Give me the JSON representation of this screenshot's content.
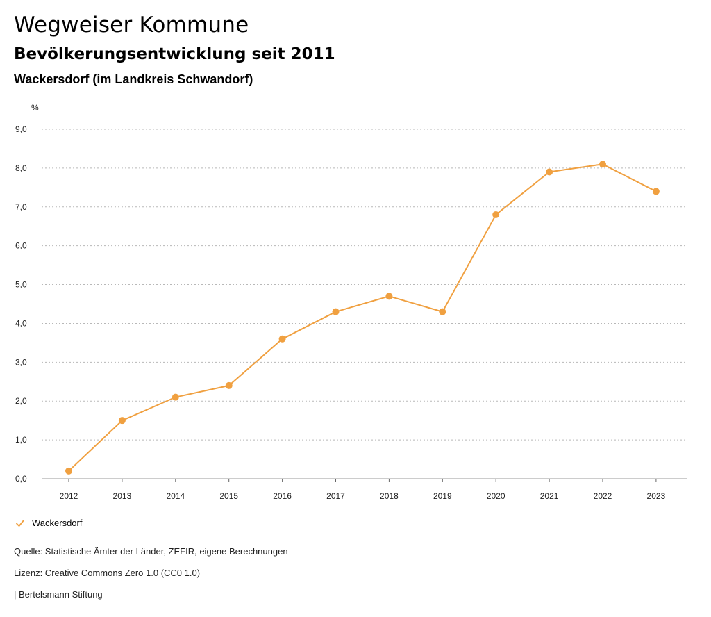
{
  "header": {
    "title": "Wegweiser Kommune",
    "subtitle": "Bevölkerungsentwicklung seit 2011",
    "region": "Wackersdorf (im Landkreis Schwandorf)"
  },
  "legend": {
    "label": "Wackersdorf",
    "icon": "checkmark-icon"
  },
  "footer": {
    "source": "Quelle: Statistische Ämter der Länder, ZEFIR, eigene Berechnungen",
    "license": "Lizenz: Creative Commons Zero 1.0 (CC0 1.0)",
    "brand": "| Bertelsmann Stiftung"
  },
  "colors": {
    "series": "#f0a040",
    "grid": "#b8b8b8"
  },
  "chart_data": {
    "type": "line",
    "title": "Bevölkerungsentwicklung seit 2011",
    "xlabel": "",
    "ylabel": "%",
    "ylim": [
      0,
      9
    ],
    "yticks": [
      0,
      1,
      2,
      3,
      4,
      5,
      6,
      7,
      8,
      9
    ],
    "ytick_labels": [
      "0,0",
      "1,0",
      "2,0",
      "3,0",
      "4,0",
      "5,0",
      "6,0",
      "7,0",
      "8,0",
      "9,0"
    ],
    "categories": [
      "2012",
      "2013",
      "2014",
      "2015",
      "2016",
      "2017",
      "2018",
      "2019",
      "2020",
      "2021",
      "2022",
      "2023"
    ],
    "series": [
      {
        "name": "Wackersdorf",
        "values": [
          0.2,
          1.5,
          2.1,
          2.4,
          3.6,
          4.3,
          4.7,
          4.3,
          6.8,
          7.9,
          8.1,
          7.4
        ]
      }
    ],
    "grid": true,
    "legend_position": "bottom-left"
  }
}
